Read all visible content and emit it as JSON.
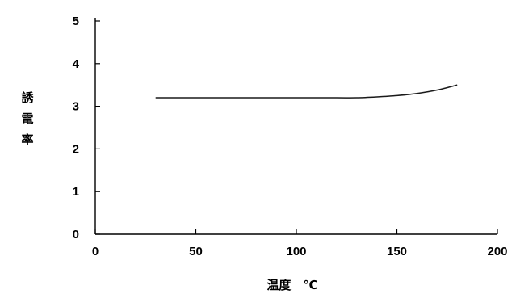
{
  "chart_data": {
    "type": "line",
    "title": "",
    "xlabel": "温度　℃",
    "ylabel": "誘電率",
    "xlim": [
      0,
      200
    ],
    "ylim": [
      0,
      5
    ],
    "xticks": [
      0,
      50,
      100,
      150,
      200
    ],
    "yticks": [
      0,
      1,
      2,
      3,
      4,
      5
    ],
    "grid": false,
    "legend": "none",
    "series": [
      {
        "color": "#1a1a1a",
        "x": [
          30,
          50,
          80,
          100,
          120,
          130,
          140,
          150,
          160,
          170,
          180
        ],
        "y": [
          3.2,
          3.2,
          3.2,
          3.2,
          3.2,
          3.2,
          3.22,
          3.25,
          3.3,
          3.38,
          3.5
        ]
      }
    ]
  }
}
